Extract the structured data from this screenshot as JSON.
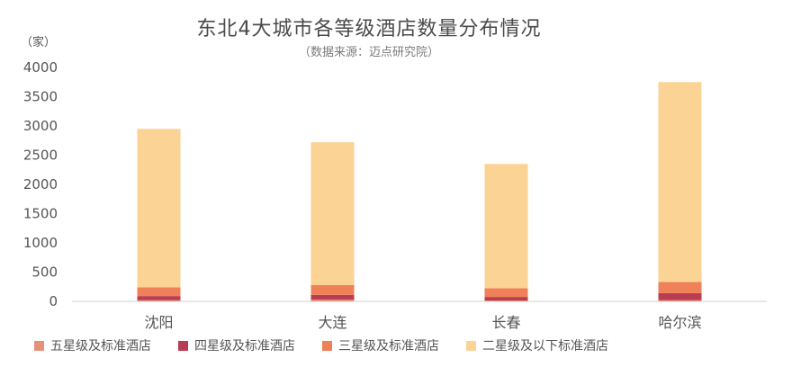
{
  "chart_data": {
    "type": "bar",
    "stacked": true,
    "title": "东北4大城市各等级酒店数量分布情况",
    "subtitle": "（数据来源：迈点研究院）",
    "unit_label": "（家）",
    "categories": [
      "沈阳",
      "大连",
      "长春",
      "哈尔滨"
    ],
    "ylim": [
      0,
      4000
    ],
    "yticks": [
      0,
      500,
      1000,
      1500,
      2000,
      2500,
      3000,
      3500,
      4000
    ],
    "grid": false,
    "legend_position": "bottom",
    "series": [
      {
        "name": "五星级及标准酒店",
        "color": "#e8917a",
        "values": [
          20,
          30,
          15,
          20
        ]
      },
      {
        "name": "四星级及标准酒店",
        "color": "#b83d52",
        "values": [
          70,
          80,
          60,
          120
        ]
      },
      {
        "name": "三星级及标准酒店",
        "color": "#ef8058",
        "values": [
          150,
          170,
          150,
          190
        ]
      },
      {
        "name": "二星级及以下标准酒店",
        "color": "#fbd395",
        "values": [
          2710,
          2440,
          2125,
          3420
        ]
      }
    ]
  }
}
